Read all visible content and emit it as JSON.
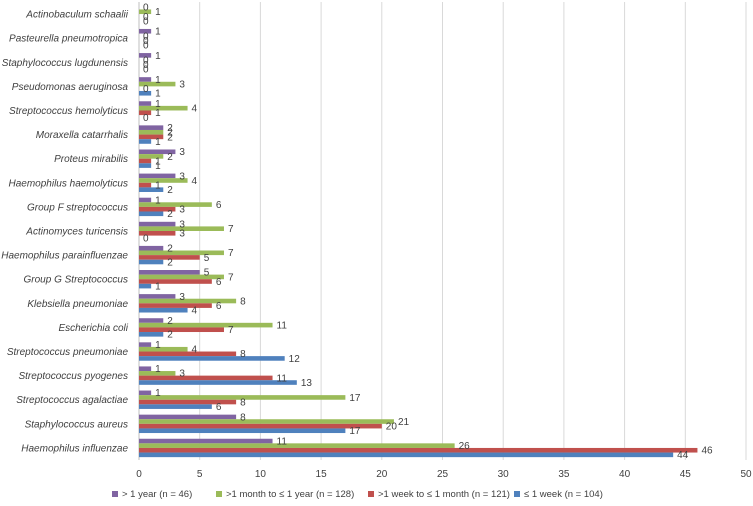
{
  "chart_data": {
    "type": "bar",
    "orientation": "horizontal",
    "title": "",
    "xlabel": "",
    "ylabel": "",
    "xlim": [
      0,
      50
    ],
    "x_ticks": [
      0,
      5,
      10,
      15,
      20,
      25,
      30,
      35,
      40,
      45,
      50
    ],
    "grid": true,
    "legend_position": "bottom",
    "categories": [
      "Actinobaculum schaalii",
      "Pasteurella pneumotropica",
      "Staphylococcus lugdunensis",
      "Pseudomonas aeruginosa",
      "Streptococcus hemolyticus",
      "Moraxella catarrhalis",
      "Proteus mirabilis",
      "Haemophilus haemolyticus",
      "Group F streptococcus",
      "Actinomyces turicensis",
      "Haemophilus parainfluenzae",
      "Group G Streptococcus",
      "Klebsiella pneumoniae",
      "Escherichia coli",
      "Streptococcus pneumoniae",
      "Streptococcus pyogenes",
      "Streptococcus agalactiae",
      "Staphylococcus aureus",
      "Haemophilus influenzae"
    ],
    "series": [
      {
        "name": "> 1 year (n = 46)",
        "color": "#8064a2",
        "values": [
          0,
          1,
          1,
          1,
          1,
          2,
          3,
          3,
          1,
          3,
          2,
          5,
          3,
          2,
          1,
          1,
          1,
          8,
          11
        ]
      },
      {
        "name": ">1 month to ≤ 1 year (n = 128)",
        "color": "#9bbb59",
        "values": [
          1,
          0,
          0,
          3,
          4,
          2,
          2,
          4,
          6,
          7,
          7,
          7,
          8,
          11,
          4,
          3,
          17,
          21,
          26
        ]
      },
      {
        "name": ">1 week to ≤ 1 month (n = 121)",
        "color": "#c0504d",
        "values": [
          0,
          0,
          0,
          0,
          1,
          2,
          1,
          1,
          3,
          3,
          5,
          6,
          6,
          7,
          8,
          11,
          8,
          20,
          46
        ]
      },
      {
        "name": "≤ 1 week (n = 104)",
        "color": "#4f81bd",
        "values": [
          0,
          0,
          0,
          1,
          0,
          1,
          1,
          2,
          2,
          0,
          2,
          1,
          4,
          2,
          12,
          13,
          6,
          17,
          44
        ]
      }
    ]
  }
}
